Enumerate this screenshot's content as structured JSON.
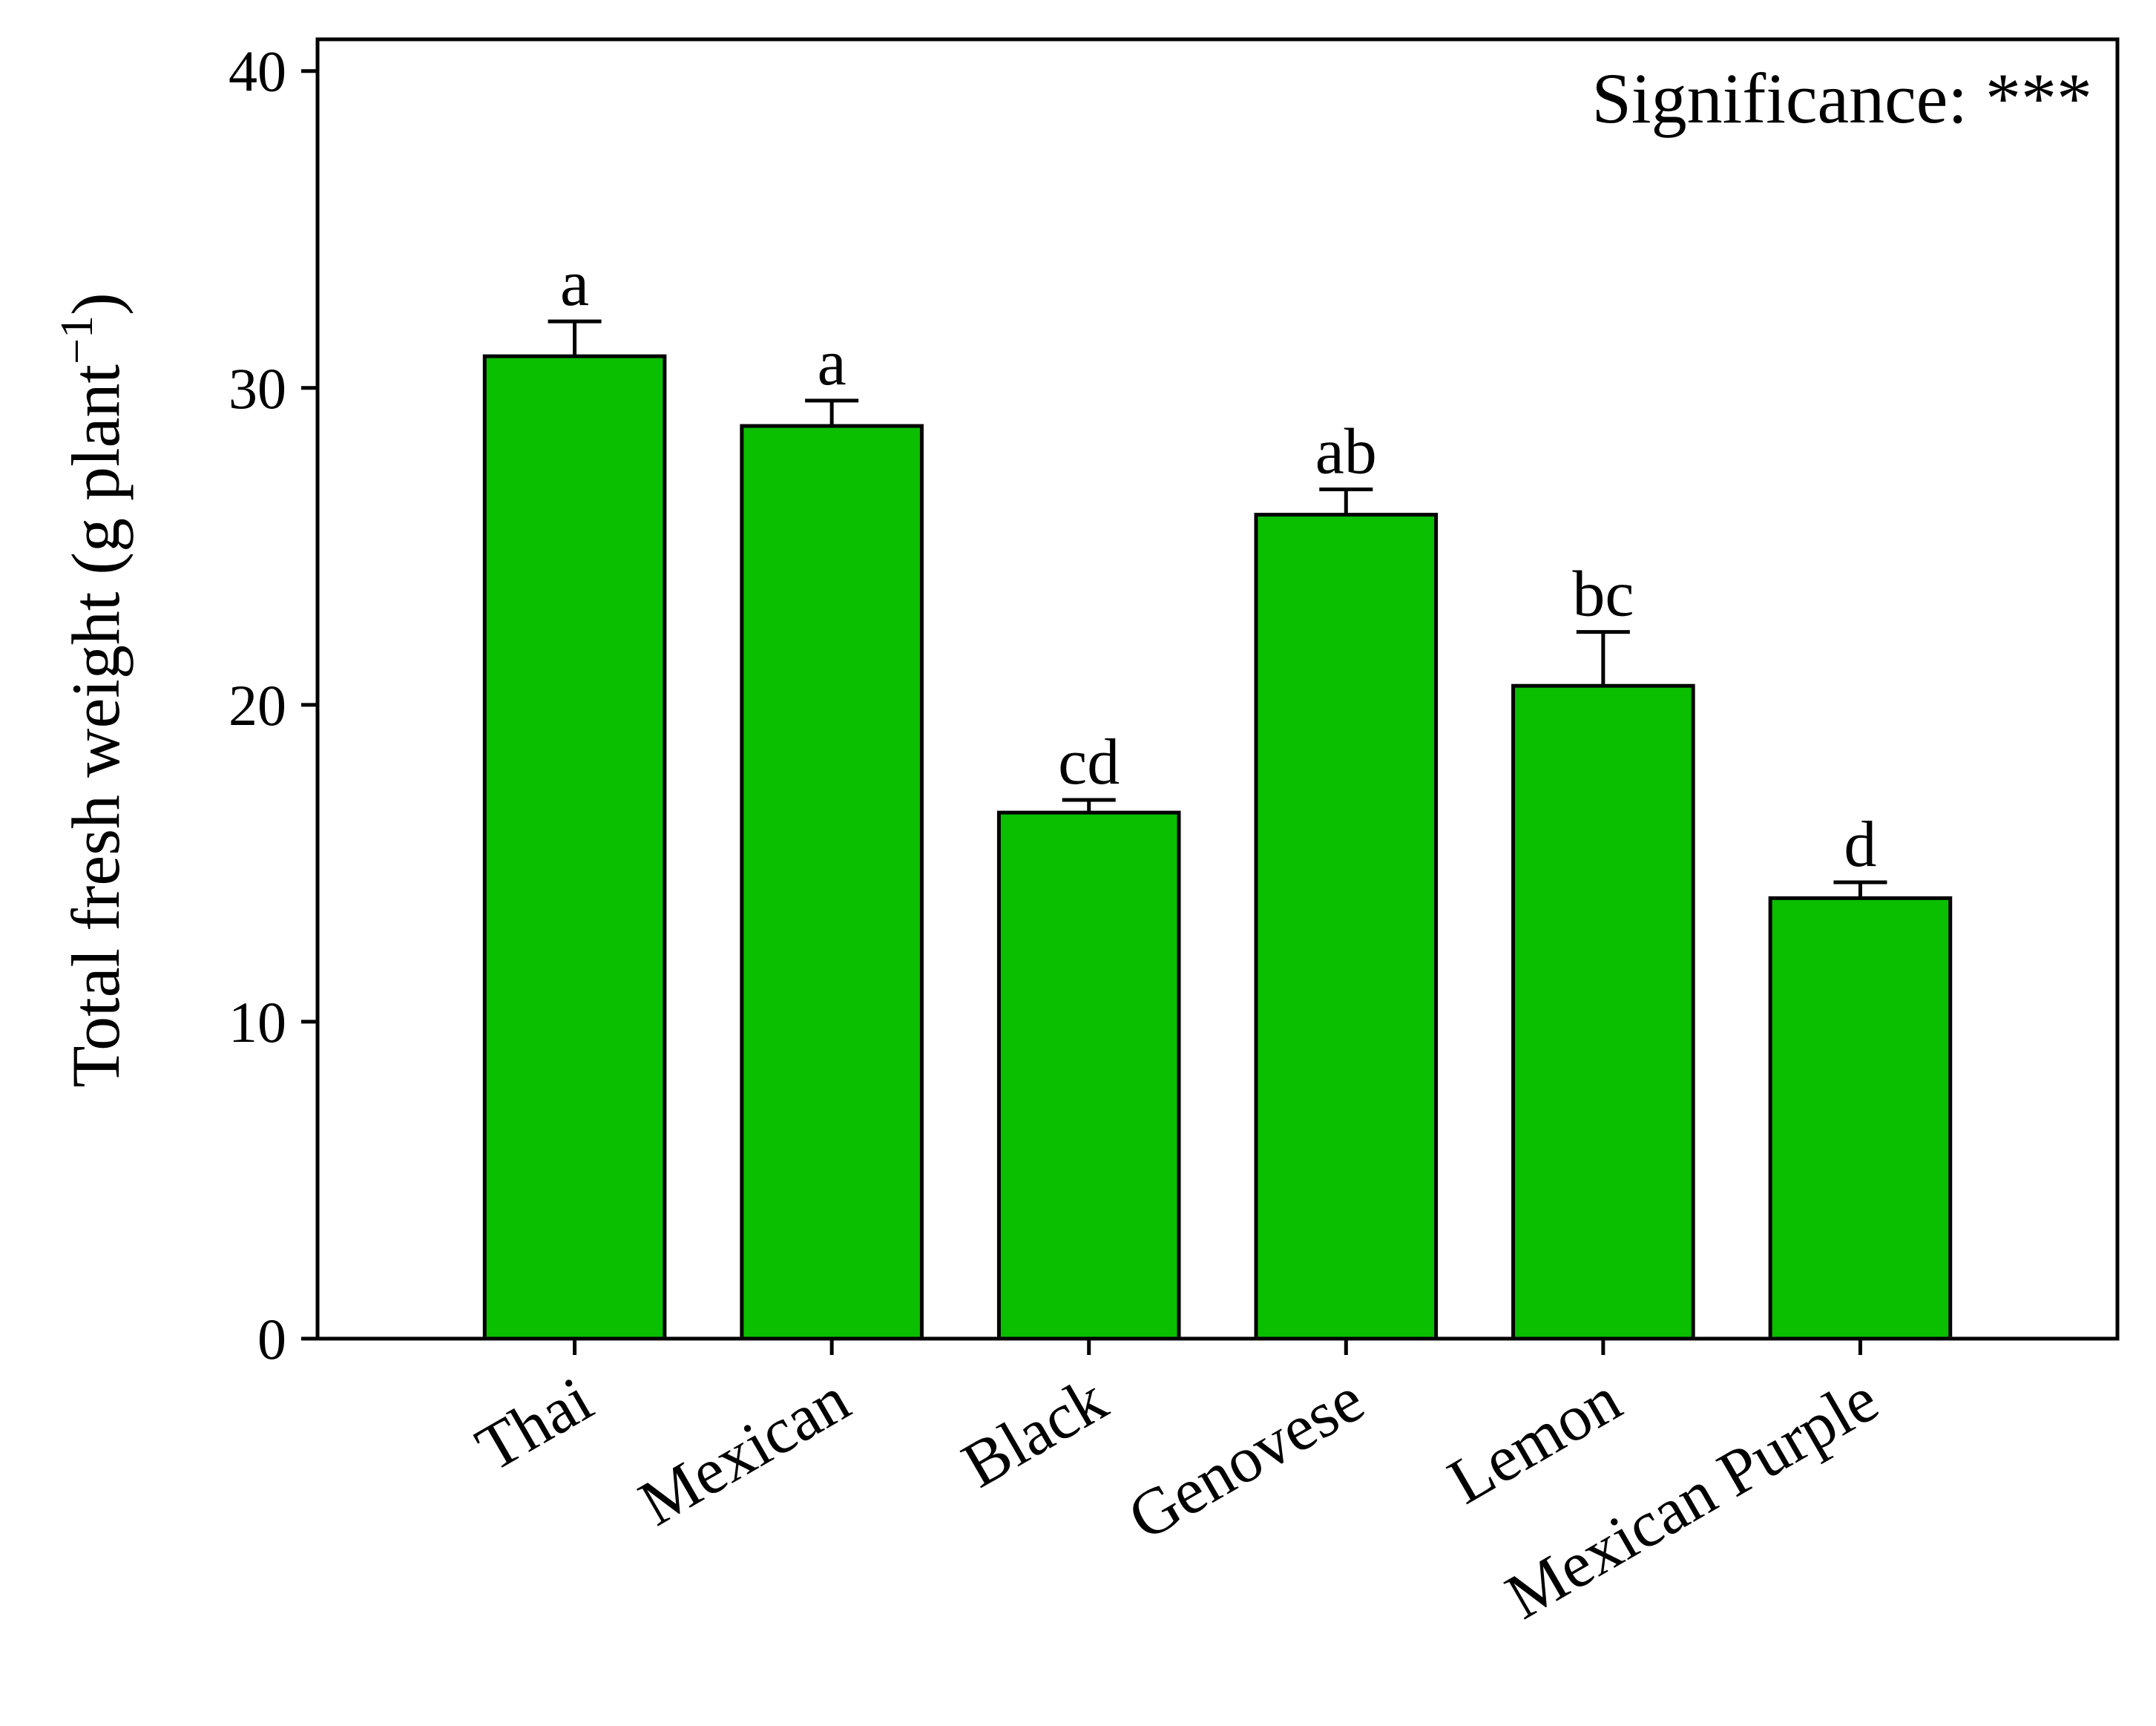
{
  "chart_data": {
    "type": "bar",
    "y_label": {
      "text": "Total fresh weight (g plant",
      "superscript": "−1",
      "suffix": ")"
    },
    "annotation": "Significance: ***",
    "categories": [
      "Thai",
      "Mexican",
      "Black",
      "Genovese",
      "Lemon",
      "Mexican Purple"
    ],
    "series": [
      {
        "color": "#0abf00",
        "values": [
          31.0,
          28.8,
          16.6,
          26.0,
          20.6,
          13.9
        ],
        "errors": [
          1.1,
          0.8,
          0.4,
          0.8,
          1.7,
          0.5
        ],
        "letters": [
          "a",
          "a",
          "cd",
          "ab",
          "bc",
          "d"
        ]
      }
    ],
    "ylim": [
      0,
      41
    ],
    "yticks": [
      0,
      10,
      20,
      30,
      40
    ],
    "grid": false
  }
}
